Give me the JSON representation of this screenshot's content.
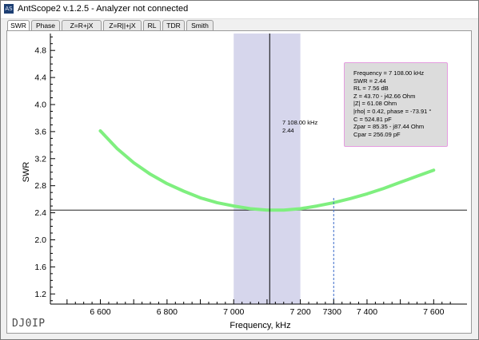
{
  "window": {
    "icon_text": "AS",
    "title": "AntScope2 v.1.2.5 - Analyzer not connected"
  },
  "tabs": [
    {
      "label": "SWR",
      "active": true
    },
    {
      "label": "Phase",
      "active": false
    },
    {
      "label": "Z=R+jX",
      "active": false
    },
    {
      "label": "Z=R||+jX",
      "active": false
    },
    {
      "label": "RL",
      "active": false
    },
    {
      "label": "TDR",
      "active": false
    },
    {
      "label": "Smith",
      "active": false
    }
  ],
  "info_box": {
    "lines": [
      "Frequency = 7 108.00 kHz",
      "SWR = 2.44",
      "RL = 7.56 dB",
      "Z = 43.70 - j42.66 Ohm",
      "|Z| = 61.08 Ohm",
      "|rho| = 0.42, phase = -73.91 °",
      "C = 524.81 pF",
      "Zpar = 85.35 - j87.44 Ohm",
      "Cpar = 256.09 pF"
    ]
  },
  "cursor": {
    "freq_label": "7 108.00 kHz",
    "swr_label": "2.44"
  },
  "callsign": "DJ0IP",
  "colors": {
    "curve": "#7fef7f",
    "band": "#d6d6ec",
    "cursor_line": "#000000",
    "ref_line": "#222222",
    "marker_line": "#3b6cc9",
    "info_border": "#e59ce0"
  },
  "chart_data": {
    "type": "line",
    "xlabel": "Frequency, kHz",
    "ylabel": "SWR",
    "xlim": [
      6450,
      7700
    ],
    "ylim": [
      1.05,
      5.05
    ],
    "x_ticks": [
      6600,
      6800,
      7000,
      7200,
      7400,
      7600
    ],
    "x_tick_labels": [
      "6 600",
      "6 800",
      "7 000",
      "7 200",
      "7 400",
      "7 600"
    ],
    "extra_tick": {
      "x": 7300,
      "label": "7300"
    },
    "y_ticks": [
      1.2,
      1.6,
      2.0,
      2.4,
      2.8,
      3.2,
      3.6,
      4.0,
      4.4,
      4.8
    ],
    "y_tick_labels": [
      "1.2",
      "1.6",
      "2.0",
      "2.4",
      "2.8",
      "3.2",
      "3.6",
      "4.0",
      "4.4",
      "4.8"
    ],
    "band": {
      "x_start": 7000,
      "x_end": 7200
    },
    "cursor_x": 7108,
    "ref_swr": 2.44,
    "marker_x": 7300,
    "series": [
      {
        "x": [
          6600,
          6650,
          6700,
          6750,
          6800,
          6850,
          6900,
          6950,
          7000,
          7050,
          7100,
          7108,
          7150,
          7200,
          7250,
          7300,
          7350,
          7400,
          7450,
          7500,
          7550,
          7600
        ],
        "values": [
          3.61,
          3.35,
          3.14,
          2.97,
          2.83,
          2.72,
          2.62,
          2.55,
          2.5,
          2.46,
          2.44,
          2.44,
          2.44,
          2.46,
          2.5,
          2.55,
          2.61,
          2.68,
          2.76,
          2.85,
          2.94,
          3.03
        ]
      }
    ]
  }
}
